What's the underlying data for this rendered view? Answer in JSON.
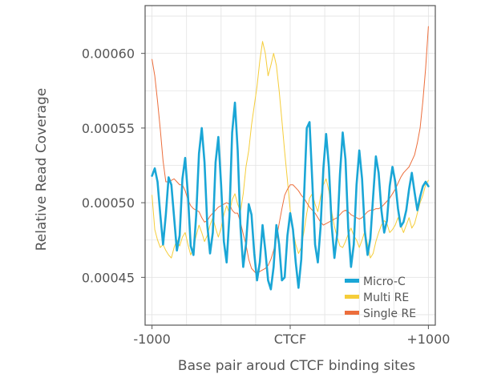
{
  "chart_data": {
    "type": "line",
    "title": "",
    "xlabel": "Base pair aroud CTCF binding sites",
    "ylabel": "Relative Read Coverage",
    "xlim": [
      -1050,
      1050
    ],
    "ylim": [
      0.000418,
      0.000632
    ],
    "x_ticks": [
      {
        "value": -1000,
        "label": "-1000"
      },
      {
        "value": 0,
        "label": "CTCF"
      },
      {
        "value": 1000,
        "label": "+1000"
      }
    ],
    "y_ticks": [
      {
        "value": 0.00045,
        "label": "0.00045"
      },
      {
        "value": 0.0005,
        "label": "0.00050"
      },
      {
        "value": 0.00055,
        "label": "0.00055"
      },
      {
        "value": 0.0006,
        "label": "0.00060"
      }
    ],
    "grid": true,
    "legend_position": "bottom-right",
    "series": [
      {
        "name": "Micro-C",
        "color": "#1aa6d6",
        "x": [
          -1000,
          -980,
          -960,
          -940,
          -920,
          -900,
          -880,
          -860,
          -840,
          -820,
          -800,
          -780,
          -760,
          -740,
          -720,
          -700,
          -680,
          -660,
          -640,
          -620,
          -600,
          -580,
          -560,
          -540,
          -520,
          -500,
          -480,
          -460,
          -440,
          -420,
          -400,
          -380,
          -360,
          -340,
          -320,
          -300,
          -280,
          -260,
          -240,
          -220,
          -200,
          -180,
          -160,
          -140,
          -120,
          -100,
          -80,
          -60,
          -40,
          -20,
          0,
          20,
          40,
          60,
          80,
          100,
          120,
          140,
          160,
          180,
          200,
          220,
          240,
          260,
          280,
          300,
          320,
          340,
          360,
          380,
          400,
          420,
          440,
          460,
          480,
          500,
          520,
          540,
          560,
          580,
          600,
          620,
          640,
          660,
          680,
          700,
          720,
          740,
          760,
          780,
          800,
          820,
          840,
          860,
          880,
          900,
          920,
          940,
          960,
          980,
          1000
        ],
        "values": [
          0.000518,
          0.000523,
          0.000514,
          0.000492,
          0.000472,
          0.000492,
          0.000517,
          0.000512,
          0.00049,
          0.000468,
          0.000478,
          0.000516,
          0.00053,
          0.000505,
          0.000471,
          0.000465,
          0.000492,
          0.000533,
          0.00055,
          0.000527,
          0.000485,
          0.000466,
          0.00048,
          0.000527,
          0.000544,
          0.000512,
          0.000474,
          0.00046,
          0.000491,
          0.000547,
          0.000567,
          0.000535,
          0.000484,
          0.000457,
          0.000472,
          0.000499,
          0.000492,
          0.000466,
          0.000448,
          0.00046,
          0.000485,
          0.000468,
          0.000448,
          0.000442,
          0.000457,
          0.000485,
          0.000472,
          0.000448,
          0.00045,
          0.000478,
          0.000493,
          0.000482,
          0.00046,
          0.000443,
          0.000462,
          0.000504,
          0.00055,
          0.000554,
          0.000514,
          0.000472,
          0.00046,
          0.000484,
          0.000523,
          0.000546,
          0.000524,
          0.000485,
          0.000463,
          0.000479,
          0.000519,
          0.000547,
          0.000529,
          0.000483,
          0.000457,
          0.000472,
          0.000512,
          0.000535,
          0.000516,
          0.000481,
          0.000465,
          0.000476,
          0.000504,
          0.000531,
          0.00052,
          0.000495,
          0.00048,
          0.000488,
          0.000511,
          0.000524,
          0.000514,
          0.000496,
          0.000484,
          0.000487,
          0.000495,
          0.000509,
          0.00052,
          0.000507,
          0.000495,
          0.000504,
          0.000511,
          0.000514,
          0.000511
        ]
      },
      {
        "name": "Multi RE",
        "color": "#f5cd3a",
        "x": [
          -1000,
          -980,
          -960,
          -940,
          -920,
          -900,
          -880,
          -860,
          -840,
          -820,
          -800,
          -780,
          -760,
          -740,
          -720,
          -700,
          -680,
          -660,
          -640,
          -620,
          -600,
          -580,
          -560,
          -540,
          -520,
          -500,
          -480,
          -460,
          -440,
          -420,
          -400,
          -380,
          -360,
          -340,
          -320,
          -300,
          -280,
          -260,
          -240,
          -220,
          -200,
          -180,
          -160,
          -140,
          -120,
          -100,
          -80,
          -60,
          -40,
          -20,
          0,
          20,
          40,
          60,
          80,
          100,
          120,
          140,
          160,
          180,
          200,
          220,
          240,
          260,
          280,
          300,
          320,
          340,
          360,
          380,
          400,
          420,
          440,
          460,
          480,
          500,
          520,
          540,
          560,
          580,
          600,
          620,
          640,
          660,
          680,
          700,
          720,
          740,
          760,
          780,
          800,
          820,
          840,
          860,
          880,
          900,
          920,
          940,
          960,
          980,
          1000
        ],
        "values": [
          0.000505,
          0.000482,
          0.000475,
          0.00047,
          0.000472,
          0.000468,
          0.000465,
          0.000463,
          0.00047,
          0.000475,
          0.000471,
          0.000477,
          0.00048,
          0.000472,
          0.000465,
          0.00047,
          0.000478,
          0.000485,
          0.00048,
          0.000474,
          0.000478,
          0.000485,
          0.00049,
          0.000483,
          0.000477,
          0.000483,
          0.000492,
          0.000498,
          0.000493,
          0.000502,
          0.000506,
          0.000499,
          0.000494,
          0.000506,
          0.000524,
          0.000535,
          0.000552,
          0.000565,
          0.000578,
          0.000595,
          0.000608,
          0.0006,
          0.000585,
          0.000592,
          0.0006,
          0.000592,
          0.000575,
          0.000555,
          0.000534,
          0.000515,
          0.000495,
          0.000482,
          0.000472,
          0.000466,
          0.00047,
          0.000481,
          0.000493,
          0.000503,
          0.000506,
          0.000499,
          0.000494,
          0.000504,
          0.000512,
          0.000516,
          0.000508,
          0.000494,
          0.000484,
          0.000477,
          0.000471,
          0.00047,
          0.000474,
          0.000479,
          0.000483,
          0.000478,
          0.000475,
          0.00047,
          0.000475,
          0.000481,
          0.000472,
          0.000463,
          0.000466,
          0.000474,
          0.00048,
          0.000485,
          0.000488,
          0.000486,
          0.00048,
          0.000482,
          0.000485,
          0.00049,
          0.000485,
          0.00048,
          0.000485,
          0.00049,
          0.000483,
          0.000486,
          0.000493,
          0.0005,
          0.000505,
          0.000512,
          0.000515
        ]
      },
      {
        "name": "Single RE",
        "color": "#ec6e3c",
        "x": [
          -1000,
          -980,
          -960,
          -940,
          -920,
          -900,
          -880,
          -860,
          -840,
          -820,
          -800,
          -780,
          -760,
          -740,
          -720,
          -700,
          -680,
          -660,
          -640,
          -620,
          -600,
          -580,
          -560,
          -540,
          -520,
          -500,
          -480,
          -460,
          -440,
          -420,
          -400,
          -380,
          -360,
          -340,
          -320,
          -300,
          -280,
          -260,
          -240,
          -220,
          -200,
          -180,
          -160,
          -140,
          -120,
          -100,
          -80,
          -60,
          -40,
          -20,
          0,
          20,
          40,
          60,
          80,
          100,
          120,
          140,
          160,
          180,
          200,
          220,
          240,
          260,
          280,
          300,
          320,
          340,
          360,
          380,
          400,
          420,
          440,
          460,
          480,
          500,
          520,
          540,
          560,
          580,
          600,
          620,
          640,
          660,
          680,
          700,
          720,
          740,
          760,
          780,
          800,
          820,
          840,
          860,
          880,
          900,
          920,
          940,
          960,
          980,
          1000
        ],
        "values": [
          0.000596,
          0.000585,
          0.000568,
          0.000549,
          0.000528,
          0.000514,
          0.000514,
          0.000515,
          0.000516,
          0.000514,
          0.000512,
          0.000512,
          0.000508,
          0.000502,
          0.000498,
          0.000496,
          0.000495,
          0.000494,
          0.00049,
          0.000487,
          0.000488,
          0.000491,
          0.000493,
          0.000495,
          0.000497,
          0.000498,
          0.000499,
          0.0005,
          0.000499,
          0.000495,
          0.000493,
          0.000493,
          0.000487,
          0.000479,
          0.000472,
          0.000462,
          0.000456,
          0.000454,
          0.000452,
          0.000454,
          0.000455,
          0.000456,
          0.000458,
          0.000462,
          0.000468,
          0.000476,
          0.000486,
          0.000496,
          0.000505,
          0.000509,
          0.000512,
          0.000512,
          0.00051,
          0.000508,
          0.000505,
          0.000503,
          0.0005,
          0.000497,
          0.000495,
          0.000493,
          0.00049,
          0.000487,
          0.000485,
          0.000486,
          0.000487,
          0.000488,
          0.000489,
          0.00049,
          0.000492,
          0.000494,
          0.000495,
          0.000494,
          0.000492,
          0.000491,
          0.00049,
          0.000489,
          0.00049,
          0.000492,
          0.000494,
          0.000495,
          0.000495,
          0.000496,
          0.000496,
          0.000497,
          0.000499,
          0.000501,
          0.000503,
          0.000506,
          0.000509,
          0.000513,
          0.000517,
          0.00052,
          0.000522,
          0.000524,
          0.000528,
          0.000532,
          0.00054,
          0.00055,
          0.000568,
          0.00059,
          0.000618
        ]
      }
    ]
  }
}
